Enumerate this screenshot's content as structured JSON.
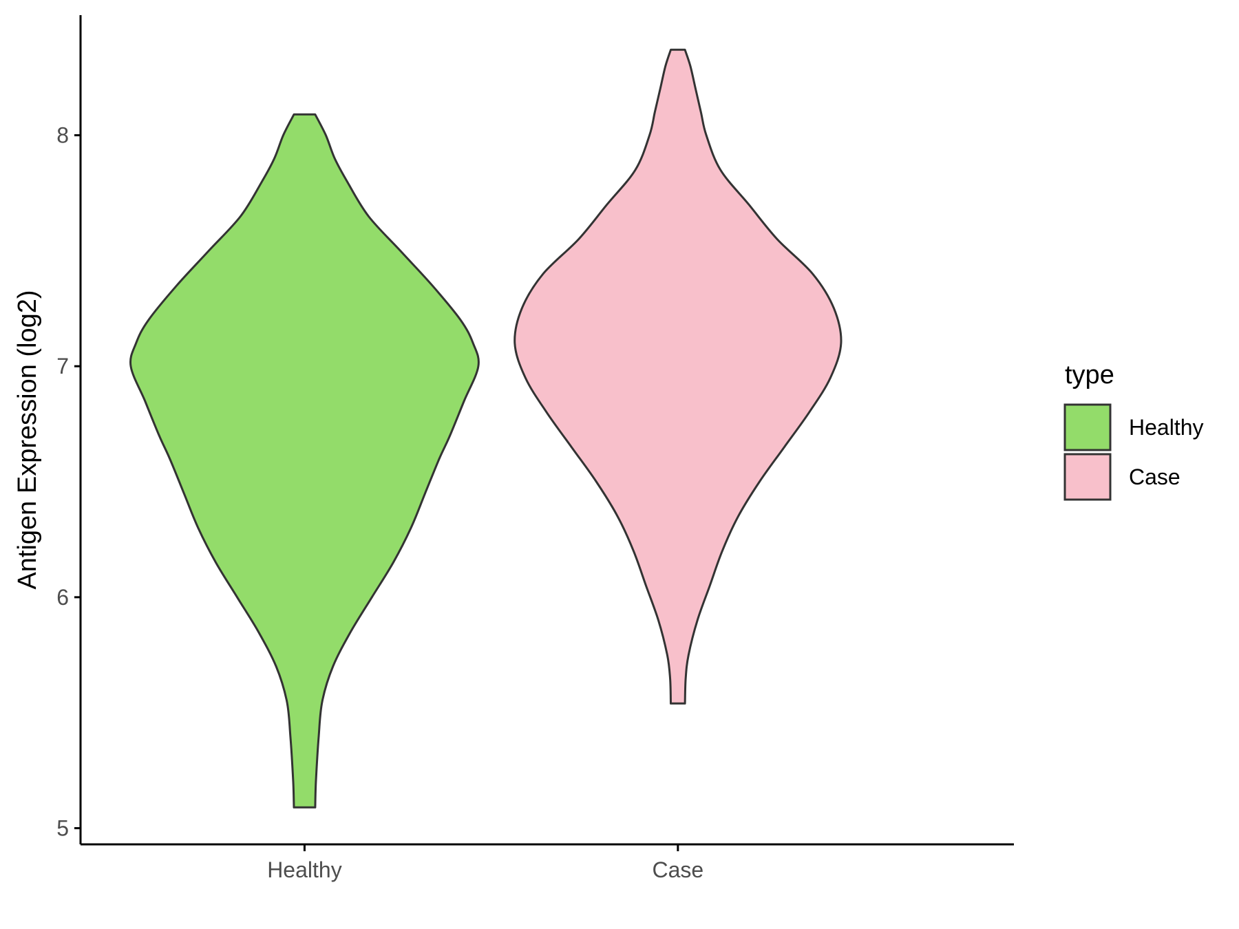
{
  "chart_data": {
    "type": "violin",
    "title": "",
    "xlabel": "",
    "ylabel": "Antigen Expression (log2)",
    "ylim": [
      4.93,
      8.52
    ],
    "yticks": [
      5,
      6,
      7,
      8
    ],
    "ytick_labels": [
      "5",
      "6",
      "7",
      "8"
    ],
    "grid": false,
    "categories": [
      "Healthy",
      "Case"
    ],
    "series": [
      {
        "name": "Healthy",
        "color": "#93DC6A",
        "min": 5.09,
        "max": 8.09,
        "profile_y": [
          5.09,
          5.2,
          5.4,
          5.55,
          5.7,
          5.85,
          6.0,
          6.15,
          6.3,
          6.45,
          6.6,
          6.7,
          6.85,
          7.0,
          7.1,
          7.2,
          7.35,
          7.5,
          7.65,
          7.8,
          7.9,
          8.0,
          8.09
        ],
        "half_width": [
          0.03,
          0.032,
          0.04,
          0.05,
          0.08,
          0.13,
          0.19,
          0.25,
          0.3,
          0.34,
          0.38,
          0.41,
          0.45,
          0.49,
          0.475,
          0.44,
          0.36,
          0.27,
          0.18,
          0.12,
          0.085,
          0.06,
          0.03
        ]
      },
      {
        "name": "Case",
        "color": "#F8C0CB",
        "min": 5.54,
        "max": 8.37,
        "profile_y": [
          5.54,
          5.65,
          5.75,
          5.9,
          6.05,
          6.2,
          6.35,
          6.5,
          6.65,
          6.8,
          6.95,
          7.1,
          7.25,
          7.4,
          7.55,
          7.7,
          7.85,
          8.0,
          8.1,
          8.2,
          8.3,
          8.37
        ],
        "half_width": [
          0.02,
          0.022,
          0.03,
          0.055,
          0.09,
          0.125,
          0.17,
          0.23,
          0.3,
          0.37,
          0.43,
          0.46,
          0.44,
          0.38,
          0.28,
          0.2,
          0.12,
          0.08,
          0.065,
          0.05,
          0.035,
          0.02
        ]
      }
    ],
    "legend": {
      "title": "type",
      "placement": "right",
      "entries": [
        {
          "label": "Healthy",
          "color": "#93DC6A"
        },
        {
          "label": "Case",
          "color": "#F8C0CB"
        }
      ]
    }
  }
}
